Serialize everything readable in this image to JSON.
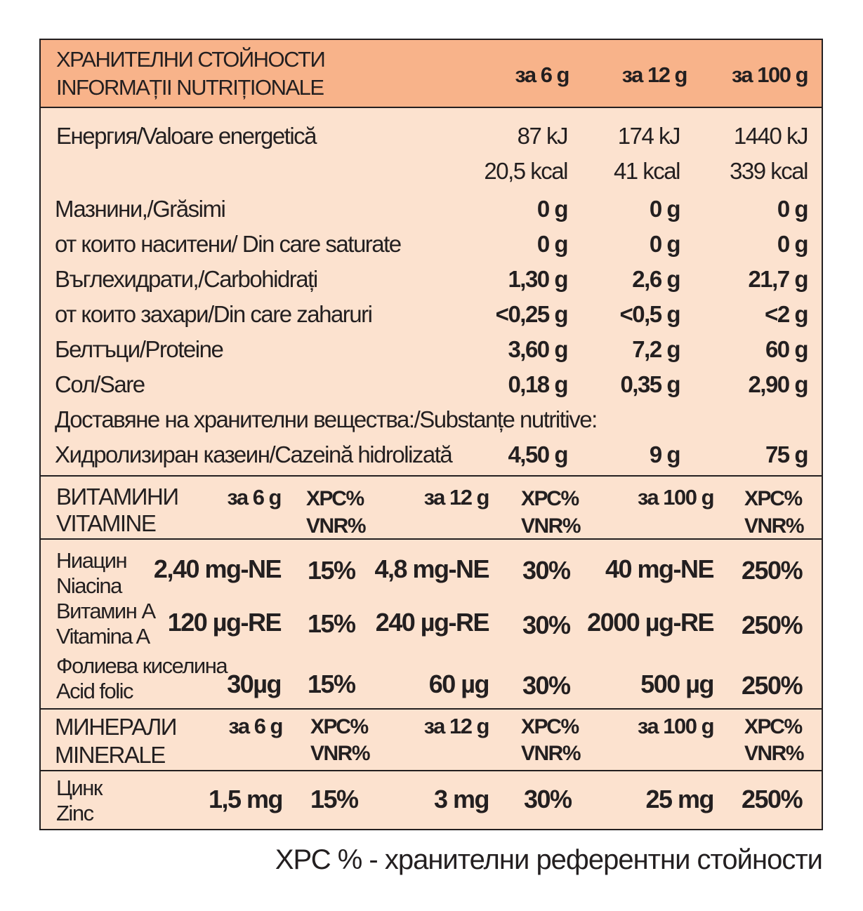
{
  "header": {
    "title_bg": "ХРАНИТЕЛНИ СТОЙНОСТИ",
    "title_ro": "INFORMAȚII NUTRIȚIONALE",
    "col_6g": "за 6 g",
    "col_12g": "за 12 g",
    "col_100g": "за 100 g"
  },
  "nutrition": [
    {
      "label": "Енергия/Valoare energetică",
      "v6": "87 kJ",
      "v12": "174 kJ",
      "v100": "1440 kJ"
    },
    {
      "label": "",
      "v6": "20,5 kcal",
      "v12": "41 kcal",
      "v100": "339 kcal"
    },
    {
      "label": "Мазнини,/Grăsimi",
      "v6": "0 g",
      "v12": "0 g",
      "v100": "0 g"
    },
    {
      "label": "от които наситени/ Din care saturate",
      "v6": "0 g",
      "v12": "0 g",
      "v100": "0 g"
    },
    {
      "label": "Въглехидрати,/Carbohidrați",
      "v6": "1,30 g",
      "v12": "2,6 g",
      "v100": "21,7 g"
    },
    {
      "label": "от които захари/Din care zaharuri",
      "v6": "<0,25 g",
      "v12": "<0,5 g",
      "v100": "<2 g"
    },
    {
      "label": "Белтъци/Proteine",
      "v6": "3,60 g",
      "v12": "7,2 g",
      "v100": "60 g"
    },
    {
      "label": "Сол/Sare",
      "v6": "0,18 g",
      "v12": "0,35 g",
      "v100": "2,90 g"
    },
    {
      "label": "Доставяне на хранителни вещества:/Substanțe nutritive:",
      "v6": "",
      "v12": "",
      "v100": ""
    },
    {
      "label": "Хидролизиран казеин/Cazeină hidrolizată",
      "v6": "4,50 g",
      "v12": "9 g",
      "v100": "75 g"
    }
  ],
  "vitamins": {
    "title_bg": "ВИТАМИНИ",
    "title_ro": "VITAMINE",
    "col_6g": "за 6 g",
    "col_12g": "за 12 g",
    "col_100g": "за 100 g",
    "pct_bg": "ХРС%",
    "pct_ro": "VNR%",
    "rows": [
      {
        "name_bg": "Ниацин",
        "name_ro": "Niacina",
        "v6": "2,40 mg-NE",
        "p6": "15%",
        "v12": "4,8 mg-NE",
        "p12": "30%",
        "v100": "40 mg-NE",
        "p100": "250%"
      },
      {
        "name_bg": "Витамин А",
        "name_ro": "Vitamina A",
        "v6": "120 µg-RE",
        "p6": "15%",
        "v12": "240 µg-RE",
        "p12": "30%",
        "v100": "2000 µg-RE",
        "p100": "250%"
      },
      {
        "name_bg": "Фолиева киселина",
        "name_ro": "Acid folic",
        "v6": "30µg",
        "p6": "15%",
        "v12": "60 µg",
        "p12": "30%",
        "v100": "500 µg",
        "p100": "250%"
      }
    ]
  },
  "minerals": {
    "title_bg": "МИНЕРАЛИ",
    "title_ro": "MINERALE",
    "col_6g": "за 6 g",
    "col_12g": "за 12 g",
    "col_100g": "за 100 g",
    "pct_bg": "ХРС%",
    "pct_ro": "VNR%",
    "rows": [
      {
        "name_bg": "Цинк",
        "name_ro": "Zinc",
        "v6": "1,5 mg",
        "p6": "15%",
        "v12": "3 mg",
        "p12": "30%",
        "v100": "25 mg",
        "p100": "250%"
      }
    ]
  },
  "footnote": "ХРС % - хранителни референтни стойности",
  "colors": {
    "header_bg": "#f8b38a",
    "body_bg": "#fce2cf",
    "text": "#231f20"
  }
}
